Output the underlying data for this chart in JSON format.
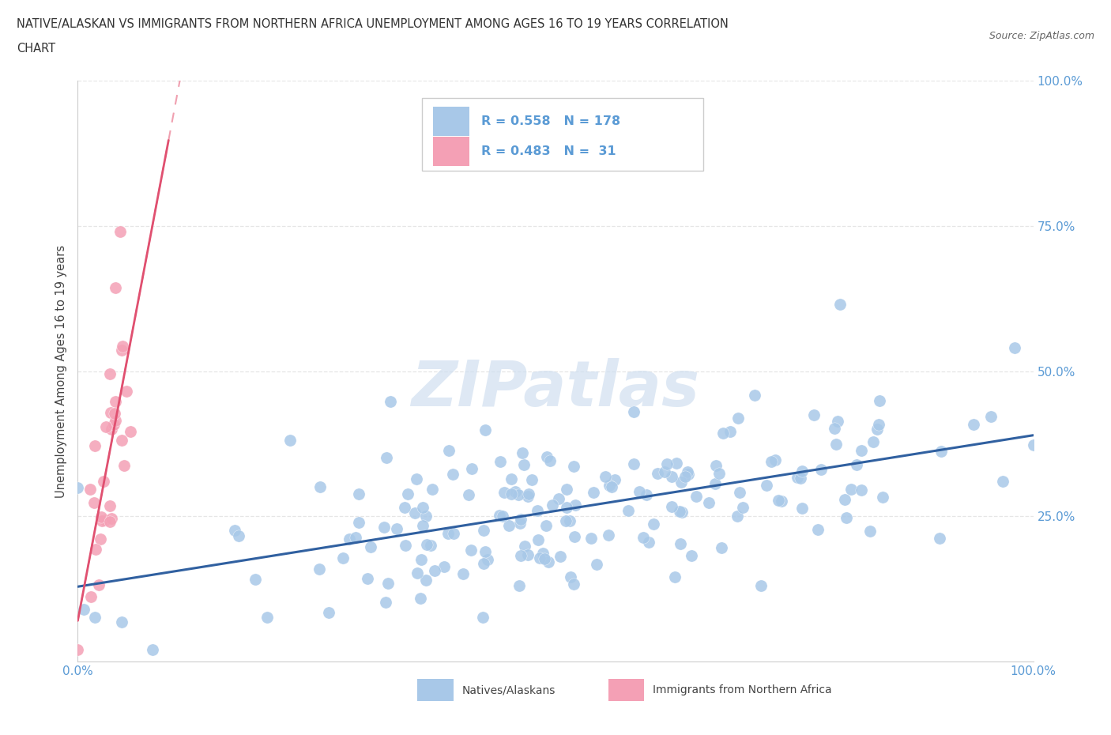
{
  "title_line1": "NATIVE/ALASKAN VS IMMIGRANTS FROM NORTHERN AFRICA UNEMPLOYMENT AMONG AGES 16 TO 19 YEARS CORRELATION",
  "title_line2": "CHART",
  "source": "Source: ZipAtlas.com",
  "ylabel": "Unemployment Among Ages 16 to 19 years",
  "xlim": [
    0.0,
    1.0
  ],
  "ylim": [
    0.0,
    1.0
  ],
  "native_R": 0.558,
  "native_N": 178,
  "immigrant_R": 0.483,
  "immigrant_N": 31,
  "native_color": "#a8c8e8",
  "immigrant_color": "#f4a0b5",
  "native_line_color": "#3060a0",
  "immigrant_line_color": "#e05070",
  "immigrant_line_dashed_color": "#f0a0b0",
  "watermark_color": "#d0dff0",
  "background_color": "#ffffff",
  "tick_color": "#5b9bd5",
  "ylabel_color": "#444444",
  "title_color": "#333333",
  "source_color": "#666666",
  "legend_border_color": "#cccccc",
  "grid_color": "#e0e0e0"
}
